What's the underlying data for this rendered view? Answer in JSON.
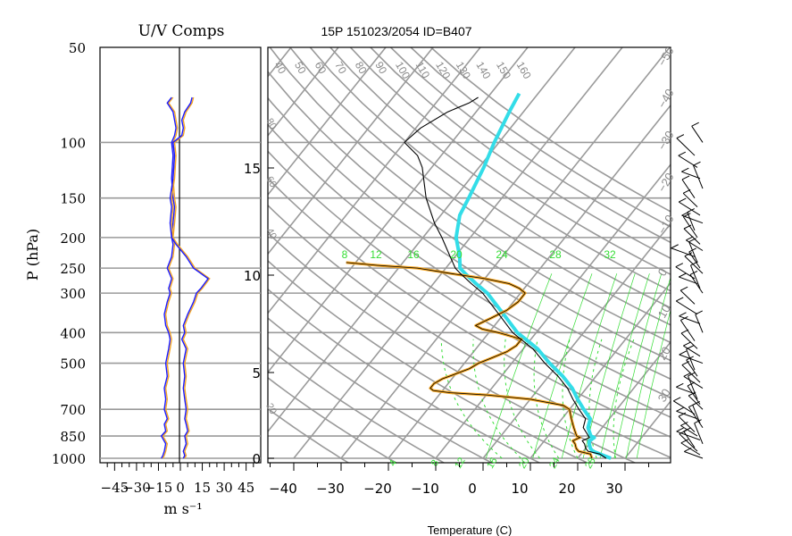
{
  "chart_data": [
    {
      "type": "line",
      "title": "U/V Comps",
      "xlabel": "m s⁻¹",
      "ylabel": "P (hPa)",
      "xlim": [
        -55,
        55
      ],
      "x_ticks": [
        "−45",
        "−30",
        "−15",
        "0",
        "15",
        "30",
        "45"
      ],
      "x_tick_values": [
        -45,
        -30,
        -15,
        0,
        15,
        30,
        45
      ],
      "y_ticks": [
        50,
        100,
        150,
        200,
        250,
        300,
        400,
        500,
        700,
        850,
        1000
      ],
      "y_log": true,
      "grid": true,
      "series": [
        {
          "color": "#f5a623",
          "points": [
            [
              1000,
              -12
            ],
            [
              980,
              -11
            ],
            [
              950,
              -10
            ],
            [
              900,
              -9
            ],
            [
              850,
              -12
            ],
            [
              820,
              -9
            ],
            [
              780,
              -10
            ],
            [
              750,
              -8
            ],
            [
              700,
              -10
            ],
            [
              650,
              -9
            ],
            [
              600,
              -10
            ],
            [
              550,
              -8
            ],
            [
              500,
              -9
            ],
            [
              450,
              -7
            ],
            [
              420,
              -6
            ],
            [
              400,
              -7
            ],
            [
              380,
              -9
            ],
            [
              350,
              -10
            ],
            [
              320,
              -8
            ],
            [
              300,
              -6
            ],
            [
              290,
              -7
            ],
            [
              270,
              -5
            ],
            [
              250,
              -8
            ],
            [
              230,
              -5
            ],
            [
              210,
              -4
            ],
            [
              200,
              -5
            ],
            [
              180,
              -4
            ],
            [
              160,
              -3
            ],
            [
              150,
              -4
            ],
            [
              130,
              -5
            ],
            [
              110,
              -4
            ],
            [
              100,
              -5
            ],
            [
              95,
              -3
            ],
            [
              90,
              -2
            ],
            [
              85,
              -3
            ],
            [
              80,
              -4
            ],
            [
              75,
              -8
            ],
            [
              72,
              -5
            ]
          ]
        },
        {
          "color": "#1a1aff",
          "points": [
            [
              1000,
              -13
            ],
            [
              980,
              -12
            ],
            [
              950,
              -11
            ],
            [
              900,
              -10
            ],
            [
              850,
              -13
            ],
            [
              820,
              -10
            ],
            [
              780,
              -11
            ],
            [
              750,
              -9
            ],
            [
              700,
              -11
            ],
            [
              650,
              -10
            ],
            [
              600,
              -11
            ],
            [
              550,
              -9
            ],
            [
              500,
              -10
            ],
            [
              450,
              -8
            ],
            [
              420,
              -7
            ],
            [
              400,
              -8
            ],
            [
              380,
              -10
            ],
            [
              350,
              -11
            ],
            [
              320,
              -9
            ],
            [
              300,
              -7
            ],
            [
              290,
              -8
            ],
            [
              270,
              -6
            ],
            [
              250,
              -9
            ],
            [
              230,
              -6
            ],
            [
              210,
              -5
            ],
            [
              200,
              -6
            ],
            [
              180,
              -5
            ],
            [
              160,
              -4
            ],
            [
              150,
              -5
            ],
            [
              130,
              -6
            ],
            [
              110,
              -5
            ],
            [
              100,
              -6
            ],
            [
              95,
              -4
            ],
            [
              90,
              -3
            ],
            [
              85,
              -4
            ],
            [
              80,
              -5
            ],
            [
              75,
              -9
            ],
            [
              72,
              -6
            ]
          ]
        },
        {
          "color": "#f5a623",
          "points": [
            [
              1000,
              3
            ],
            [
              980,
              4
            ],
            [
              950,
              3
            ],
            [
              900,
              5
            ],
            [
              850,
              4
            ],
            [
              820,
              6
            ],
            [
              780,
              5
            ],
            [
              750,
              4
            ],
            [
              700,
              5
            ],
            [
              650,
              4
            ],
            [
              600,
              3
            ],
            [
              550,
              4
            ],
            [
              500,
              3
            ],
            [
              450,
              5
            ],
            [
              420,
              2
            ],
            [
              400,
              4
            ],
            [
              380,
              3
            ],
            [
              350,
              6
            ],
            [
              320,
              10
            ],
            [
              300,
              12
            ],
            [
              290,
              15
            ],
            [
              270,
              20
            ],
            [
              250,
              10
            ],
            [
              230,
              5
            ],
            [
              210,
              -2
            ],
            [
              200,
              -5
            ],
            [
              180,
              -6
            ],
            [
              160,
              -5
            ],
            [
              150,
              -6
            ],
            [
              130,
              -4
            ],
            [
              110,
              -3
            ],
            [
              100,
              -4
            ],
            [
              95,
              2
            ],
            [
              90,
              3
            ],
            [
              85,
              2
            ],
            [
              80,
              4
            ],
            [
              75,
              8
            ],
            [
              72,
              9
            ]
          ]
        },
        {
          "color": "#1a1aff",
          "points": [
            [
              1000,
              2
            ],
            [
              980,
              3
            ],
            [
              950,
              2
            ],
            [
              900,
              4
            ],
            [
              850,
              3
            ],
            [
              820,
              5
            ],
            [
              780,
              4
            ],
            [
              750,
              3
            ],
            [
              700,
              4
            ],
            [
              650,
              3
            ],
            [
              600,
              2
            ],
            [
              550,
              3
            ],
            [
              500,
              2
            ],
            [
              450,
              4
            ],
            [
              420,
              1
            ],
            [
              400,
              3
            ],
            [
              380,
              2
            ],
            [
              350,
              5
            ],
            [
              320,
              9
            ],
            [
              300,
              11
            ],
            [
              290,
              14
            ],
            [
              270,
              19
            ],
            [
              250,
              9
            ],
            [
              230,
              4
            ],
            [
              210,
              -3
            ],
            [
              200,
              -6
            ],
            [
              180,
              -7
            ],
            [
              160,
              -6
            ],
            [
              150,
              -7
            ],
            [
              130,
              -5
            ],
            [
              110,
              -4
            ],
            [
              100,
              -5
            ],
            [
              95,
              1
            ],
            [
              90,
              2
            ],
            [
              85,
              1
            ],
            [
              80,
              3
            ],
            [
              75,
              7
            ],
            [
              72,
              8
            ]
          ]
        }
      ]
    },
    {
      "type": "line",
      "title": "15P 151023/2054 ID=B407",
      "xlabel": "Temperature (C)",
      "xlim": [
        -45,
        40
      ],
      "x_ticks": [
        "−40",
        "−30",
        "−20",
        "−10",
        "0",
        "10",
        "20",
        "30"
      ],
      "x_tick_values": [
        -40,
        -30,
        -20,
        -10,
        0,
        10,
        20,
        30
      ],
      "height_ticks": [
        "0",
        "5",
        "10",
        "15"
      ],
      "height_tick_values_km": [
        0,
        5,
        10,
        15
      ],
      "mixing_ratio_labels": [
        "8",
        "12",
        "16",
        "20",
        "24",
        "28",
        "32"
      ],
      "bottom_labels": [
        "4",
        "8",
        "12",
        "16",
        "20",
        "24",
        "28"
      ],
      "dry_adiabat_labels": [
        "40",
        "50",
        "60",
        "70",
        "80",
        "90",
        "100",
        "110",
        "120",
        "130",
        "140",
        "150",
        "160"
      ],
      "left_edge_labels": [
        "80",
        "60",
        "40",
        "20"
      ],
      "right_edge_labels": [
        "−50",
        "−40",
        "−30",
        "−20",
        "−10",
        "0",
        "10",
        "20",
        "30"
      ],
      "grid": true,
      "temperature": {
        "color": "#000000",
        "points": [
          [
            1000,
            26
          ],
          [
            970,
            24
          ],
          [
            950,
            21
          ],
          [
            930,
            20
          ],
          [
            900,
            19
          ],
          [
            880,
            18
          ],
          [
            860,
            19
          ],
          [
            850,
            18.5
          ],
          [
            800,
            16
          ],
          [
            750,
            15
          ],
          [
            700,
            12
          ],
          [
            650,
            9
          ],
          [
            600,
            6
          ],
          [
            550,
            2
          ],
          [
            500,
            -3
          ],
          [
            450,
            -8
          ],
          [
            400,
            -15
          ],
          [
            350,
            -21
          ],
          [
            300,
            -28
          ],
          [
            280,
            -32
          ],
          [
            260,
            -36
          ],
          [
            250,
            -38
          ],
          [
            230,
            -41
          ],
          [
            200,
            -46
          ],
          [
            180,
            -50
          ],
          [
            150,
            -56
          ],
          [
            120,
            -62
          ],
          [
            110,
            -65
          ],
          [
            100,
            -70
          ],
          [
            90,
            -69
          ],
          [
            80,
            -66
          ],
          [
            75,
            -63
          ],
          [
            72,
            -62
          ]
        ]
      },
      "dewpoint": {
        "color": "#f5a623",
        "points": [
          [
            1000,
            23
          ],
          [
            970,
            22
          ],
          [
            950,
            19
          ],
          [
            930,
            18
          ],
          [
            900,
            17
          ],
          [
            880,
            16
          ],
          [
            860,
            17
          ],
          [
            850,
            16
          ],
          [
            800,
            14
          ],
          [
            750,
            12
          ],
          [
            700,
            10
          ],
          [
            680,
            8
          ],
          [
            650,
            0
          ],
          [
            630,
            -10
          ],
          [
            620,
            -18
          ],
          [
            610,
            -22
          ],
          [
            600,
            -23
          ],
          [
            580,
            -23
          ],
          [
            560,
            -22
          ],
          [
            540,
            -20
          ],
          [
            520,
            -18
          ],
          [
            500,
            -17
          ],
          [
            480,
            -15
          ],
          [
            460,
            -13
          ],
          [
            440,
            -12
          ],
          [
            420,
            -12
          ],
          [
            400,
            -18
          ],
          [
            390,
            -22
          ],
          [
            380,
            -24
          ],
          [
            360,
            -22
          ],
          [
            340,
            -20
          ],
          [
            320,
            -19
          ],
          [
            300,
            -19
          ],
          [
            290,
            -21
          ],
          [
            280,
            -24
          ],
          [
            270,
            -30
          ],
          [
            260,
            -38
          ],
          [
            250,
            -46
          ],
          [
            245,
            -55
          ],
          [
            240,
            -62
          ]
        ]
      },
      "parcel": {
        "color": "#33dde8",
        "points": [
          [
            1000,
            27
          ],
          [
            970,
            24
          ],
          [
            950,
            22
          ],
          [
            930,
            21
          ],
          [
            900,
            20
          ],
          [
            880,
            19.5
          ],
          [
            860,
            20
          ],
          [
            850,
            19
          ],
          [
            800,
            17
          ],
          [
            750,
            16
          ],
          [
            700,
            13
          ],
          [
            650,
            10
          ],
          [
            600,
            7
          ],
          [
            550,
            3
          ],
          [
            500,
            -2
          ],
          [
            450,
            -7
          ],
          [
            400,
            -14
          ],
          [
            350,
            -20
          ],
          [
            300,
            -27
          ],
          [
            280,
            -31
          ],
          [
            260,
            -35
          ],
          [
            250,
            -37
          ],
          [
            230,
            -39
          ],
          [
            200,
            -43
          ],
          [
            170,
            -46
          ],
          [
            150,
            -47
          ],
          [
            120,
            -49
          ],
          [
            100,
            -51
          ],
          [
            80,
            -53
          ],
          [
            70,
            -54
          ]
        ]
      }
    },
    {
      "type": "barbs",
      "color": "#000000",
      "levels_hpa": [
        1000,
        975,
        950,
        925,
        900,
        875,
        850,
        825,
        800,
        775,
        750,
        725,
        700,
        675,
        650,
        625,
        600,
        575,
        550,
        525,
        500,
        475,
        450,
        425,
        400,
        375,
        350,
        325,
        300,
        290,
        280,
        270,
        260,
        250,
        240,
        230,
        220,
        210,
        200,
        190,
        180,
        170,
        160,
        150,
        140,
        130,
        120,
        110,
        100
      ]
    }
  ]
}
